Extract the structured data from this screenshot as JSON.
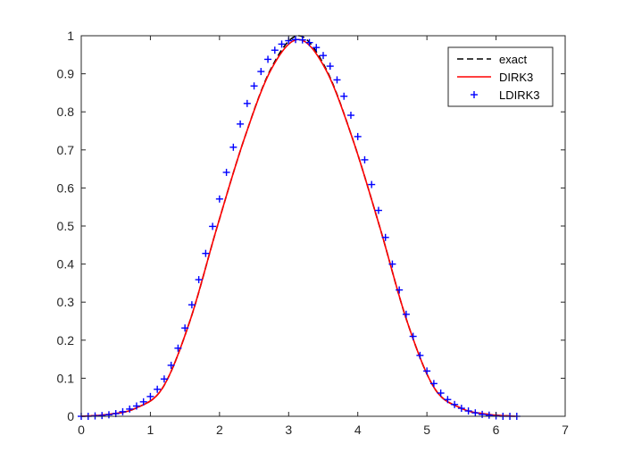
{
  "chart_data": {
    "type": "line",
    "title": "",
    "xlabel": "",
    "ylabel": "",
    "xlim": [
      0,
      7
    ],
    "ylim": [
      0,
      1
    ],
    "xticks": [
      0,
      1,
      2,
      3,
      4,
      5,
      6,
      7
    ],
    "yticks": [
      0,
      0.1,
      0.2,
      0.3,
      0.4,
      0.5,
      0.6,
      0.7,
      0.8,
      0.9,
      1
    ],
    "xtick_labels": [
      "0",
      "1",
      "2",
      "3",
      "4",
      "5",
      "6",
      "7"
    ],
    "ytick_labels": [
      "0",
      "0.1",
      "0.2",
      "0.3",
      "0.4",
      "0.5",
      "0.6",
      "0.7",
      "0.8",
      "0.9",
      "1"
    ],
    "grid": false,
    "legend_position": "top-right",
    "series": [
      {
        "name": "exact",
        "style": "dashed-line",
        "color": "#000000",
        "x": [
          0,
          0.393,
          0.785,
          1.178,
          1.571,
          1.963,
          2.356,
          2.749,
          3.142,
          3.534,
          3.927,
          4.32,
          4.712,
          5.105,
          5.498,
          5.89,
          6.283
        ],
        "y": [
          0,
          0.005,
          0.021,
          0.075,
          0.25,
          0.496,
          0.728,
          0.915,
          1.0,
          0.915,
          0.728,
          0.496,
          0.25,
          0.075,
          0.021,
          0.005,
          0
        ]
      },
      {
        "name": "DIRK3",
        "style": "solid-line",
        "color": "#ff0000",
        "x": [
          0,
          0.393,
          0.785,
          1.178,
          1.571,
          1.963,
          2.356,
          2.749,
          3.142,
          3.534,
          3.927,
          4.32,
          4.712,
          5.105,
          5.498,
          5.89,
          6.283
        ],
        "y": [
          0,
          0.005,
          0.021,
          0.075,
          0.25,
          0.496,
          0.728,
          0.912,
          0.99,
          0.912,
          0.728,
          0.496,
          0.25,
          0.075,
          0.021,
          0.005,
          0
        ]
      },
      {
        "name": "LDIRK3",
        "style": "plus-markers",
        "color": "#0000ff",
        "x": [
          0,
          0.1,
          0.2,
          0.3,
          0.4,
          0.5,
          0.6,
          0.7,
          0.8,
          0.9,
          1.0,
          1.1,
          1.2,
          1.3,
          1.4,
          1.5,
          1.6,
          1.7,
          1.8,
          1.9,
          2.0,
          2.1,
          2.2,
          2.3,
          2.4,
          2.5,
          2.6,
          2.7,
          2.8,
          2.9,
          3.0,
          3.1,
          3.2,
          3.3,
          3.4,
          3.5,
          3.6,
          3.7,
          3.8,
          3.9,
          4.0,
          4.1,
          4.2,
          4.3,
          4.4,
          4.5,
          4.6,
          4.7,
          4.8,
          4.9,
          5.0,
          5.1,
          5.2,
          5.3,
          5.4,
          5.5,
          5.6,
          5.7,
          5.8,
          5.9,
          6.0,
          6.1,
          6.2,
          6.3
        ],
        "y": [
          0.0,
          0.0,
          0.001,
          0.002,
          0.004,
          0.007,
          0.012,
          0.019,
          0.027,
          0.038,
          0.052,
          0.071,
          0.098,
          0.134,
          0.179,
          0.232,
          0.293,
          0.359,
          0.428,
          0.499,
          0.571,
          0.641,
          0.707,
          0.768,
          0.822,
          0.868,
          0.906,
          0.938,
          0.962,
          0.978,
          0.987,
          0.99,
          0.989,
          0.982,
          0.969,
          0.948,
          0.92,
          0.884,
          0.841,
          0.791,
          0.735,
          0.674,
          0.609,
          0.541,
          0.47,
          0.4,
          0.332,
          0.268,
          0.21,
          0.16,
          0.119,
          0.086,
          0.061,
          0.044,
          0.031,
          0.021,
          0.014,
          0.009,
          0.005,
          0.003,
          0.001,
          0.0,
          0.0,
          0.0
        ]
      }
    ]
  }
}
